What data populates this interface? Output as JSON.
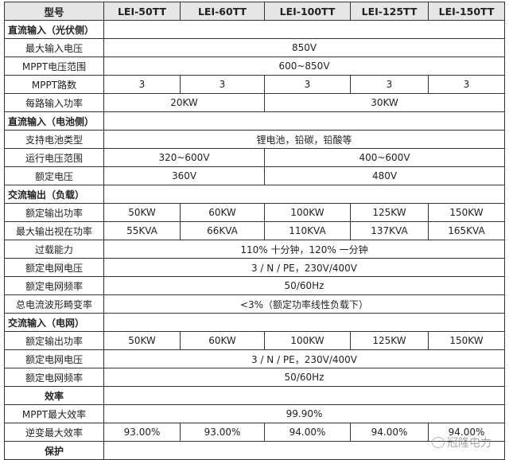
{
  "header": [
    "型号",
    "LEI-50TT",
    "LEI-60TT",
    "LEI-100TT",
    "LEI-125TT",
    "LEI-150TT"
  ],
  "rows": [
    {
      "type": "section",
      "label": "直流输入（光伏侧）"
    },
    {
      "label": "最大输入电压",
      "cells": [
        {
          "v": "850V",
          "span": 5
        }
      ]
    },
    {
      "label": "MPPT电压范围",
      "cells": [
        {
          "v": "600~850V",
          "span": 5
        }
      ]
    },
    {
      "label": "MPPT路数",
      "cells": [
        {
          "v": "3"
        },
        {
          "v": "3"
        },
        {
          "v": "3"
        },
        {
          "v": "3"
        },
        {
          "v": "3"
        }
      ]
    },
    {
      "label": "每路输入功率",
      "cells": [
        {
          "v": "20KW",
          "span": 2
        },
        {
          "v": "30KW",
          "span": 3
        }
      ]
    },
    {
      "type": "section",
      "label": "直流输入（电池侧）"
    },
    {
      "label": "支持电池类型",
      "cells": [
        {
          "v": "锂电池，铅碳，铅酸等",
          "span": 5
        }
      ]
    },
    {
      "label": "运行电压范围",
      "cells": [
        {
          "v": "320~600V",
          "span": 2
        },
        {
          "v": "400~600V",
          "span": 3
        }
      ]
    },
    {
      "label": "额定电压",
      "cells": [
        {
          "v": "360V",
          "span": 2
        },
        {
          "v": "480V",
          "span": 3
        }
      ]
    },
    {
      "type": "section",
      "label": "交流输出（负载）"
    },
    {
      "label": "额定输出功率",
      "cells": [
        {
          "v": "50KW"
        },
        {
          "v": "60KW"
        },
        {
          "v": "100KW"
        },
        {
          "v": "125KW"
        },
        {
          "v": "150KW"
        }
      ]
    },
    {
      "label": "最大输出视在功率",
      "cells": [
        {
          "v": "55KVA"
        },
        {
          "v": "66KVA"
        },
        {
          "v": "110KVA"
        },
        {
          "v": "137KVA"
        },
        {
          "v": "165KVA"
        }
      ]
    },
    {
      "label": "过载能力",
      "cells": [
        {
          "v": "110% 十分钟，120% 一分钟",
          "span": 5
        }
      ]
    },
    {
      "label": "额定电网电压",
      "cells": [
        {
          "v": "3 / N / PE，230V/400V",
          "span": 5
        }
      ]
    },
    {
      "label": "额定电网频率",
      "cells": [
        {
          "v": "50/60Hz",
          "span": 5
        }
      ]
    },
    {
      "label": "总电流波形畸变率",
      "cells": [
        {
          "v": "<3%（额定功率线性负载下）",
          "span": 5
        }
      ]
    },
    {
      "type": "section",
      "label": "交流输入（电网）"
    },
    {
      "label": "额定输出功率",
      "cells": [
        {
          "v": "50KW"
        },
        {
          "v": "60KW"
        },
        {
          "v": "100KW"
        },
        {
          "v": "125KW"
        },
        {
          "v": "150KW"
        }
      ]
    },
    {
      "label": "额定电网电压",
      "cells": [
        {
          "v": "3 / N / PE，230V/400V",
          "span": 5
        }
      ]
    },
    {
      "label": "额定电网频率",
      "cells": [
        {
          "v": "50/60Hz",
          "span": 5
        }
      ]
    },
    {
      "type": "section-center",
      "label": "效率"
    },
    {
      "label": "MPPT最大效率",
      "cells": [
        {
          "v": "99.90%",
          "span": 5
        }
      ]
    },
    {
      "label": "逆变最大效率",
      "cells": [
        {
          "v": "93.00%"
        },
        {
          "v": "93.00%"
        },
        {
          "v": "94.00%"
        },
        {
          "v": "94.00%"
        },
        {
          "v": "94.00%"
        }
      ]
    },
    {
      "type": "section-center",
      "label": "保护"
    }
  ],
  "watermark": {
    "text": "冠隆电力",
    "icon": "wechat-icon"
  }
}
